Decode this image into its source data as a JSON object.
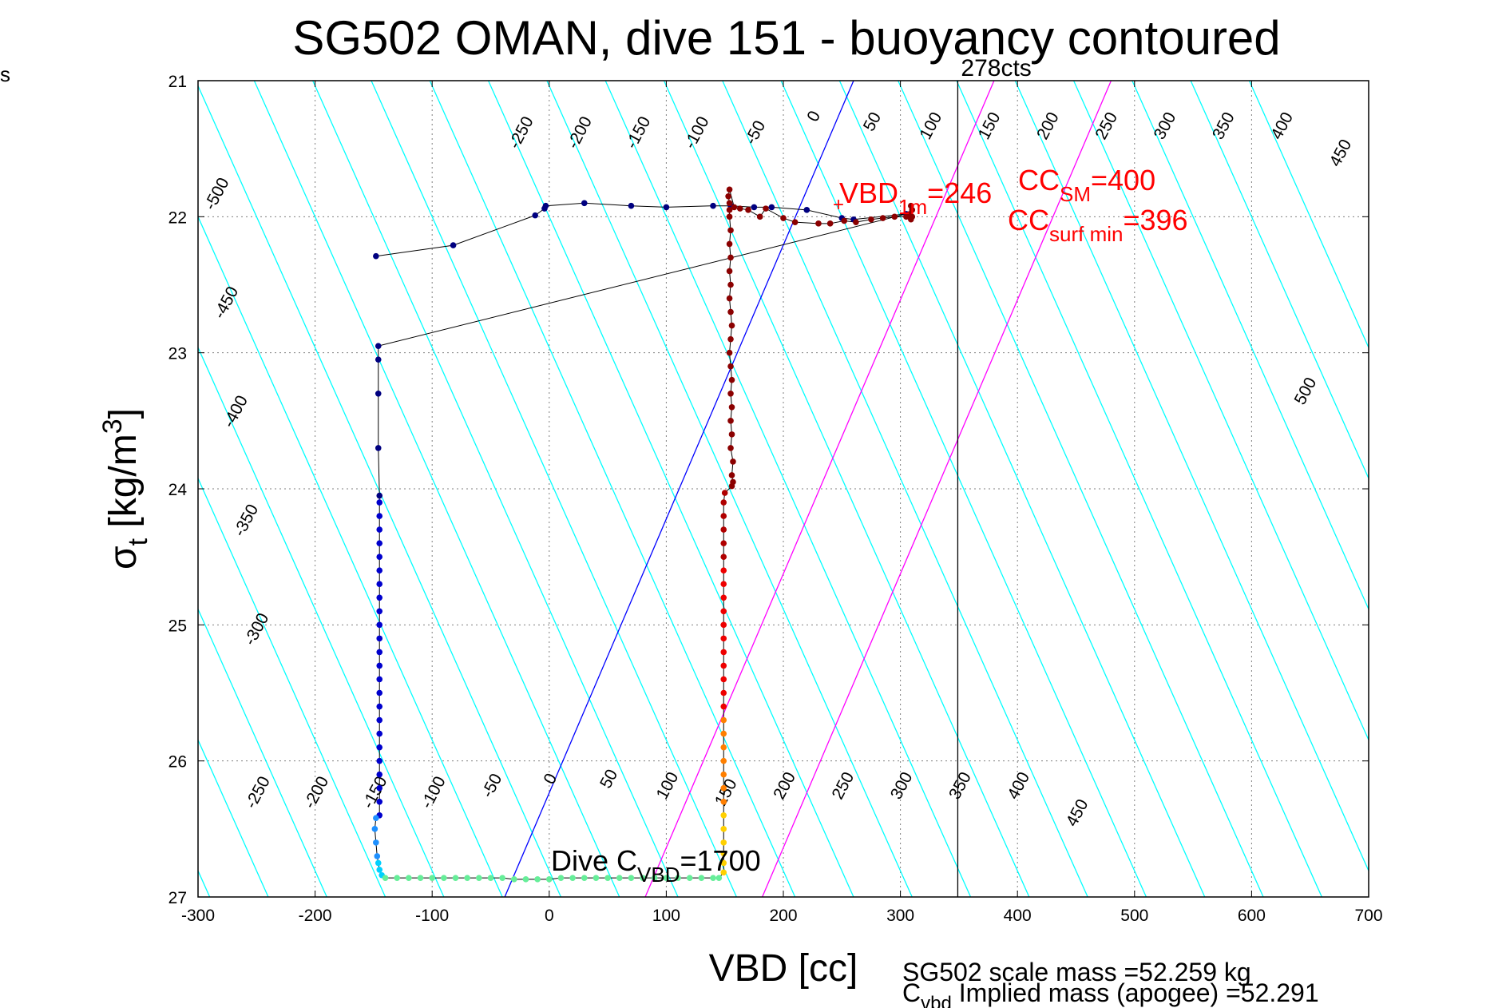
{
  "edge_label": "s",
  "chart_data": {
    "type": "scatter",
    "title": "SG502 OMAN, dive 151 - buoyancy contoured",
    "xlabel": "VBD [cc]",
    "ylabel": {
      "base": "σ",
      "sub": "t",
      "unit_pre": " [kg/m",
      "unit_sup": "3",
      "unit_post": "]"
    },
    "xlim": [
      -300,
      700
    ],
    "ylim": [
      21,
      27
    ],
    "y_reversed": true,
    "x_ticks": [
      -300,
      -200,
      -100,
      0,
      100,
      200,
      300,
      400,
      500,
      600,
      700
    ],
    "y_ticks": [
      21,
      22,
      23,
      24,
      25,
      26,
      27
    ],
    "grid": true,
    "contour_color": "#00ffff",
    "contour_slope_cc_per_kgm3": 52,
    "contour_levels": [
      -550,
      -500,
      -450,
      -400,
      -350,
      -300,
      -250,
      -200,
      -150,
      -100,
      -50,
      0,
      50,
      100,
      150,
      200,
      250,
      300,
      350,
      400,
      450,
      500,
      550,
      600,
      650
    ],
    "contour_labels_upper": [
      {
        "text": "-500",
        "x": -280,
        "y": 21.85
      },
      {
        "text": "-450",
        "x": -272,
        "y": 22.65
      },
      {
        "text": "-400",
        "x": -264,
        "y": 23.45
      },
      {
        "text": "-350",
        "x": -255,
        "y": 24.25
      },
      {
        "text": "-300",
        "x": -246,
        "y": 25.05
      },
      {
        "text": "-250",
        "x": -20,
        "y": 21.4
      },
      {
        "text": "-200",
        "x": 30,
        "y": 21.4
      },
      {
        "text": "-150",
        "x": 80,
        "y": 21.4
      },
      {
        "text": "-100",
        "x": 130,
        "y": 21.4
      },
      {
        "text": "-50",
        "x": 180,
        "y": 21.4
      },
      {
        "text": "0",
        "x": 230,
        "y": 21.28
      },
      {
        "text": "50",
        "x": 280,
        "y": 21.32
      },
      {
        "text": "100",
        "x": 330,
        "y": 21.35
      },
      {
        "text": "150",
        "x": 380,
        "y": 21.35
      },
      {
        "text": "200",
        "x": 430,
        "y": 21.35
      },
      {
        "text": "250",
        "x": 480,
        "y": 21.35
      },
      {
        "text": "300",
        "x": 530,
        "y": 21.35
      },
      {
        "text": "350",
        "x": 580,
        "y": 21.35
      },
      {
        "text": "400",
        "x": 630,
        "y": 21.35
      },
      {
        "text": "450",
        "x": 680,
        "y": 21.55
      },
      {
        "text": "500",
        "x": 650,
        "y": 23.3
      }
    ],
    "contour_labels_lower": [
      {
        "text": "-250",
        "x": -245,
        "y": 26.25
      },
      {
        "text": "-200",
        "x": -195,
        "y": 26.25
      },
      {
        "text": "-150",
        "x": -145,
        "y": 26.25
      },
      {
        "text": "-100",
        "x": -95,
        "y": 26.25
      },
      {
        "text": "-50",
        "x": -45,
        "y": 26.2
      },
      {
        "text": "0",
        "x": 5,
        "y": 26.15
      },
      {
        "text": "50",
        "x": 55,
        "y": 26.15
      },
      {
        "text": "100",
        "x": 105,
        "y": 26.2
      },
      {
        "text": "150",
        "x": 155,
        "y": 26.25
      },
      {
        "text": "200",
        "x": 205,
        "y": 26.2
      },
      {
        "text": "250",
        "x": 255,
        "y": 26.2
      },
      {
        "text": "300",
        "x": 305,
        "y": 26.2
      },
      {
        "text": "350",
        "x": 355,
        "y": 26.2
      },
      {
        "text": "400",
        "x": 405,
        "y": 26.2
      },
      {
        "text": "450",
        "x": 455,
        "y": 26.4
      }
    ],
    "reference_lines": [
      {
        "color": "#0000ff",
        "x_at_21": 260,
        "x_at_27": -38
      },
      {
        "color": "#ff00ff",
        "x_at_21": 380,
        "x_at_27": 82
      },
      {
        "color": "#ff00ff",
        "x_at_21": 480,
        "x_at_27": 182
      }
    ],
    "vertical_line": {
      "x": 349,
      "label": "278cts",
      "color": "#000000"
    },
    "dive_trace": {
      "line_color": "#000000",
      "segments": [
        {
          "name": "",
          "color": "#000080",
          "points": [
            [
              -148,
              22.29
            ],
            [
              -82,
              22.21
            ],
            [
              -12,
              21.99
            ],
            [
              -4,
              21.94
            ],
            [
              -3,
              21.92
            ],
            [
              30,
              21.9
            ],
            [
              70,
              21.92
            ],
            [
              100,
              21.93
            ],
            [
              140,
              21.92
            ],
            [
              155,
              21.92
            ],
            [
              175,
              21.93
            ],
            [
              190,
              21.93
            ],
            [
              220,
              21.95
            ],
            [
              250,
              22.01
            ],
            [
              260,
              22.02
            ],
            [
              305,
              21.98
            ]
          ]
        },
        {
          "name": "",
          "color": "#000080",
          "points": [
            [
              -146,
              22.95
            ],
            [
              -146,
              23.05
            ],
            [
              -146,
              23.3
            ],
            [
              -146,
              23.7
            ],
            [
              -145,
              24.05
            ]
          ]
        },
        {
          "name": "",
          "color": "#0000cd",
          "points": [
            [
              -145,
              24.1
            ],
            [
              -145,
              24.2
            ],
            [
              -145,
              24.3
            ],
            [
              -145,
              24.4
            ],
            [
              -145,
              24.5
            ],
            [
              -145,
              24.6
            ],
            [
              -145,
              24.7
            ],
            [
              -145,
              24.8
            ],
            [
              -145,
              24.9
            ],
            [
              -145,
              25.0
            ],
            [
              -145,
              25.1
            ],
            [
              -145,
              25.2
            ],
            [
              -145,
              25.3
            ],
            [
              -145,
              25.4
            ],
            [
              -145,
              25.5
            ],
            [
              -145,
              25.6
            ],
            [
              -145,
              25.7
            ],
            [
              -145,
              25.8
            ],
            [
              -145,
              25.9
            ],
            [
              -145,
              26.0
            ],
            [
              -145,
              26.1
            ],
            [
              -145,
              26.2
            ],
            [
              -145,
              26.3
            ],
            [
              -145,
              26.4
            ]
          ]
        },
        {
          "name": "",
          "color": "#1e90ff",
          "points": [
            [
              -148,
              26.42
            ],
            [
              -149,
              26.5
            ],
            [
              -148,
              26.6
            ],
            [
              -147,
              26.7
            ]
          ]
        },
        {
          "name": "",
          "color": "#00d0ff",
          "points": [
            [
              -146,
              26.75
            ],
            [
              -145,
              26.8
            ],
            [
              -143,
              26.84
            ]
          ]
        },
        {
          "name": "",
          "color": "#66ee99",
          "points": [
            [
              -140,
              26.86
            ],
            [
              -130,
              26.86
            ],
            [
              -120,
              26.86
            ],
            [
              -110,
              26.86
            ],
            [
              -100,
              26.86
            ],
            [
              -90,
              26.86
            ],
            [
              -80,
              26.86
            ],
            [
              -70,
              26.86
            ],
            [
              -60,
              26.86
            ],
            [
              -50,
              26.86
            ],
            [
              -40,
              26.86
            ],
            [
              -30,
              26.87
            ],
            [
              -20,
              26.87
            ],
            [
              -10,
              26.87
            ],
            [
              0,
              26.87
            ],
            [
              10,
              26.86
            ],
            [
              20,
              26.86
            ],
            [
              30,
              26.86
            ],
            [
              40,
              26.86
            ],
            [
              50,
              26.86
            ],
            [
              60,
              26.86
            ],
            [
              70,
              26.86
            ],
            [
              80,
              26.86
            ],
            [
              90,
              26.86
            ],
            [
              100,
              26.86
            ],
            [
              110,
              26.86
            ],
            [
              120,
              26.86
            ],
            [
              130,
              26.86
            ],
            [
              140,
              26.86
            ],
            [
              145,
              26.86
            ]
          ]
        },
        {
          "name": "",
          "color": "#ffd000",
          "points": [
            [
              149,
              26.82
            ],
            [
              149,
              26.75
            ],
            [
              149,
              26.68
            ],
            [
              149,
              26.6
            ],
            [
              149,
              26.5
            ],
            [
              149,
              26.4
            ]
          ]
        },
        {
          "name": "",
          "color": "#ff7f00",
          "points": [
            [
              149,
              26.3
            ],
            [
              149,
              26.2
            ],
            [
              149,
              26.1
            ],
            [
              149,
              26.0
            ],
            [
              149,
              25.9
            ],
            [
              149,
              25.8
            ],
            [
              149,
              25.7
            ]
          ]
        },
        {
          "name": "",
          "color": "#ee0000",
          "points": [
            [
              149,
              25.6
            ],
            [
              149,
              25.5
            ],
            [
              149,
              25.4
            ],
            [
              149,
              25.3
            ],
            [
              149,
              25.2
            ],
            [
              149,
              25.1
            ],
            [
              149,
              25.0
            ],
            [
              149,
              24.9
            ],
            [
              149,
              24.8
            ],
            [
              149,
              24.7
            ],
            [
              149,
              24.6
            ]
          ]
        },
        {
          "name": "",
          "color": "#b00000",
          "points": [
            [
              149,
              24.5
            ],
            [
              149,
              24.4
            ],
            [
              149,
              24.3
            ],
            [
              149,
              24.2
            ],
            [
              149,
              24.1
            ],
            [
              150,
              24.03
            ]
          ]
        },
        {
          "name": "",
          "color": "#8b0000",
          "points": [
            [
              156,
              23.98
            ],
            [
              157,
              23.95
            ],
            [
              156,
              23.9
            ],
            [
              157,
              23.8
            ],
            [
              155,
              23.7
            ],
            [
              156,
              23.6
            ],
            [
              155,
              23.5
            ],
            [
              156,
              23.4
            ],
            [
              155,
              23.3
            ],
            [
              156,
              23.2
            ],
            [
              155,
              23.1
            ],
            [
              154,
              23.0
            ],
            [
              155,
              22.9
            ],
            [
              156,
              22.8
            ],
            [
              155,
              22.7
            ],
            [
              154,
              22.6
            ],
            [
              155,
              22.5
            ],
            [
              154,
              22.4
            ],
            [
              155,
              22.3
            ],
            [
              154,
              22.2
            ],
            [
              155,
              22.1
            ],
            [
              154,
              22.0
            ],
            [
              154,
              21.95
            ],
            [
              154,
              21.9
            ],
            [
              153,
              21.85
            ],
            [
              154,
              21.8
            ],
            [
              158,
              21.93
            ],
            [
              163,
              21.94
            ],
            [
              170,
              21.95
            ],
            [
              180,
              22.0
            ],
            [
              185,
              21.94
            ],
            [
              200,
              22.01
            ],
            [
              210,
              22.04
            ],
            [
              230,
              22.05
            ],
            [
              240,
              22.05
            ],
            [
              252,
              22.03
            ],
            [
              262,
              22.04
            ],
            [
              275,
              22.02
            ],
            [
              285,
              22.01
            ],
            [
              295,
              22.0
            ],
            [
              305,
              22.0
            ],
            [
              308,
              21.98
            ],
            [
              310,
              21.95
            ],
            [
              309,
              21.92
            ],
            [
              310,
              22.0
            ],
            [
              309,
              22.02
            ]
          ]
        }
      ]
    },
    "annotations": {
      "vbd_marker": {
        "x": 243,
        "y": 21.91,
        "symbol": "+"
      },
      "vbd_text": {
        "main": "VBD",
        "sub": "1m",
        "value": "=246"
      },
      "cc_sm": {
        "main": "CC",
        "sub": "SM",
        "value": "=400"
      },
      "cc_surf": {
        "main": "CC",
        "sub": "surf min",
        "value": "=396"
      },
      "dive_c": {
        "main": "Dive C",
        "sub": "VBD",
        "value": "=1700"
      }
    },
    "footer": {
      "line1": "SG502 scale mass =52.259 kg",
      "line2_main": "C",
      "line2_sub": "vbd",
      "line2_rest": " Implied mass (apogee) =52.291"
    }
  }
}
